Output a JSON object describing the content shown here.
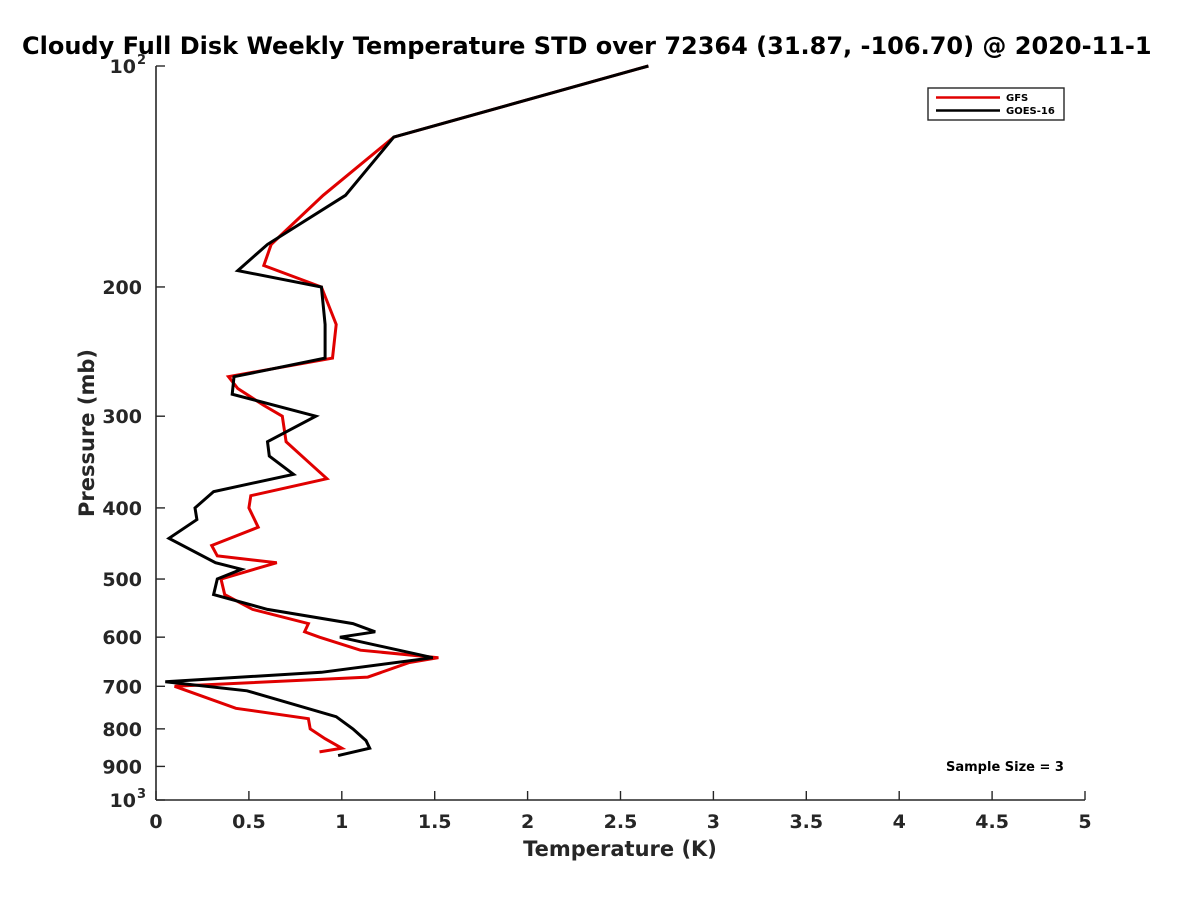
{
  "chart_data": {
    "type": "line",
    "title": "Cloudy Full Disk Weekly Temperature STD over 72364 (31.87, -106.70) @ 2020-11-1",
    "xlabel": "Temperature (K)",
    "ylabel": "Pressure (mb)",
    "xlim": [
      0,
      5
    ],
    "ylim": [
      100,
      1000
    ],
    "y_scale": "log",
    "y_reversed": true,
    "x_ticks": [
      "0",
      "0.5",
      "1",
      "1.5",
      "2",
      "2.5",
      "3",
      "3.5",
      "4",
      "4.5",
      "5"
    ],
    "y_ticks": [
      {
        "value": 100,
        "label": "10",
        "exp": "2"
      },
      {
        "value": 200,
        "label": "200"
      },
      {
        "value": 300,
        "label": "300"
      },
      {
        "value": 400,
        "label": "400"
      },
      {
        "value": 500,
        "label": "500"
      },
      {
        "value": 600,
        "label": "600"
      },
      {
        "value": 700,
        "label": "700"
      },
      {
        "value": 800,
        "label": "800"
      },
      {
        "value": 900,
        "label": "900"
      },
      {
        "value": 1000,
        "label": "10",
        "exp": "3"
      }
    ],
    "legend_position": "top-right",
    "grid": false,
    "annotation": "Sample Size = 3",
    "series": [
      {
        "name": "GFS",
        "color": "#e00000",
        "points": [
          [
            2.65,
            100
          ],
          [
            1.28,
            125
          ],
          [
            0.9,
            150
          ],
          [
            0.62,
            175
          ],
          [
            0.58,
            187
          ],
          [
            0.89,
            200
          ],
          [
            0.97,
            225
          ],
          [
            0.95,
            250
          ],
          [
            0.39,
            265
          ],
          [
            0.44,
            275
          ],
          [
            0.58,
            290
          ],
          [
            0.68,
            300
          ],
          [
            0.7,
            325
          ],
          [
            0.84,
            350
          ],
          [
            0.92,
            365
          ],
          [
            0.51,
            385
          ],
          [
            0.5,
            400
          ],
          [
            0.55,
            425
          ],
          [
            0.3,
            450
          ],
          [
            0.33,
            465
          ],
          [
            0.65,
            475
          ],
          [
            0.35,
            500
          ],
          [
            0.37,
            525
          ],
          [
            0.52,
            550
          ],
          [
            0.82,
            575
          ],
          [
            0.8,
            590
          ],
          [
            0.88,
            600
          ],
          [
            1.1,
            625
          ],
          [
            1.52,
            640
          ],
          [
            1.36,
            650
          ],
          [
            1.14,
            680
          ],
          [
            0.1,
            700
          ],
          [
            0.43,
            750
          ],
          [
            0.82,
            775
          ],
          [
            0.83,
            800
          ],
          [
            0.91,
            825
          ],
          [
            1.0,
            850
          ],
          [
            0.88,
            860
          ]
        ]
      },
      {
        "name": "GOES-16",
        "color": "#000000",
        "points": [
          [
            2.65,
            100
          ],
          [
            1.28,
            125
          ],
          [
            1.02,
            150
          ],
          [
            0.6,
            175
          ],
          [
            0.44,
            190
          ],
          [
            0.89,
            200
          ],
          [
            0.91,
            225
          ],
          [
            0.91,
            250
          ],
          [
            0.42,
            265
          ],
          [
            0.41,
            280
          ],
          [
            0.86,
            300
          ],
          [
            0.6,
            325
          ],
          [
            0.61,
            340
          ],
          [
            0.74,
            360
          ],
          [
            0.31,
            380
          ],
          [
            0.21,
            400
          ],
          [
            0.22,
            415
          ],
          [
            0.07,
            440
          ],
          [
            0.32,
            475
          ],
          [
            0.46,
            485
          ],
          [
            0.33,
            500
          ],
          [
            0.31,
            525
          ],
          [
            0.6,
            550
          ],
          [
            1.06,
            575
          ],
          [
            1.18,
            590
          ],
          [
            0.99,
            600
          ],
          [
            1.49,
            640
          ],
          [
            0.89,
            670
          ],
          [
            0.05,
            690
          ],
          [
            0.49,
            710
          ],
          [
            0.97,
            770
          ],
          [
            1.06,
            800
          ],
          [
            1.13,
            830
          ],
          [
            1.15,
            850
          ],
          [
            0.98,
            870
          ]
        ]
      }
    ]
  }
}
